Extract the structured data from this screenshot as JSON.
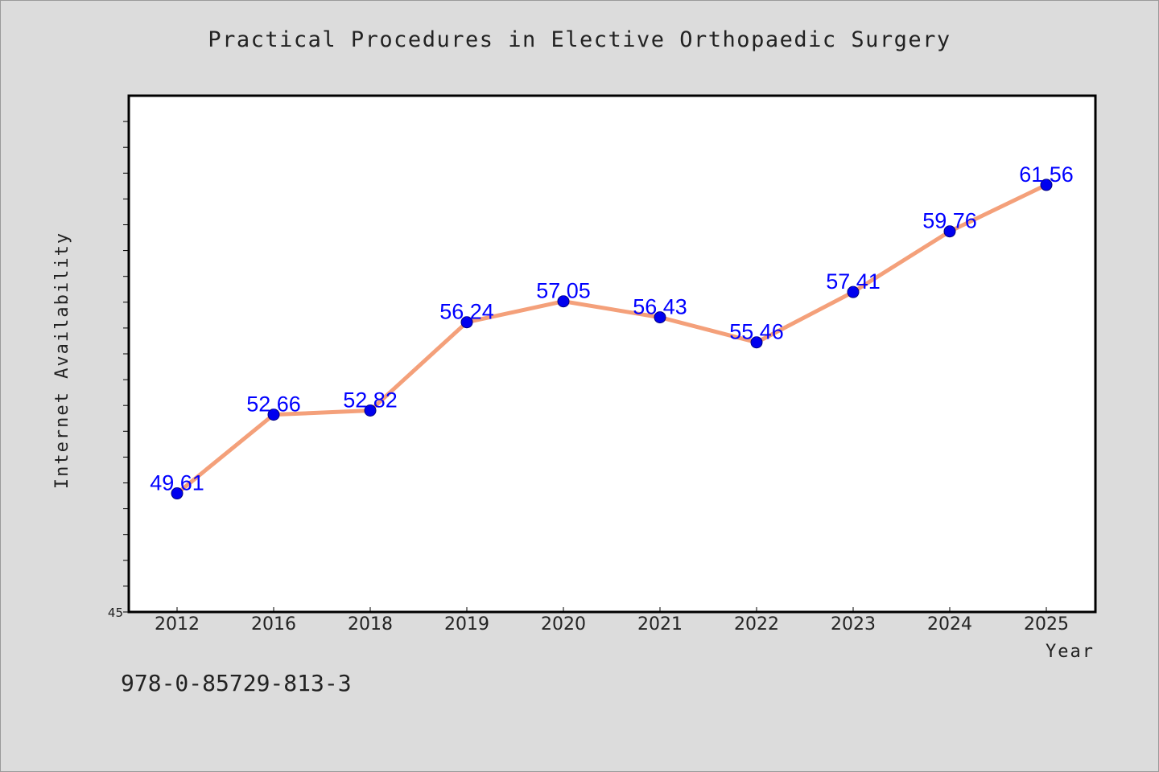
{
  "chart_data": {
    "type": "line",
    "title": "Practical Procedures in Elective Orthopaedic Surgery",
    "xlabel": "Year",
    "ylabel": "Internet Availability",
    "categories": [
      "2012",
      "2016",
      "2018",
      "2019",
      "2020",
      "2021",
      "2022",
      "2023",
      "2024",
      "2025"
    ],
    "series": [
      {
        "values": [
          49.61,
          52.66,
          52.82,
          56.24,
          57.05,
          56.43,
          55.46,
          57.41,
          59.76,
          61.56
        ],
        "data_labels": [
          "49.61",
          "52.66",
          "52.82",
          "56.24",
          "57.05",
          "56.43",
          "55.46",
          "57.41",
          "59.76",
          "61.56"
        ]
      }
    ],
    "ylim": [
      45,
      65
    ],
    "y_tick_labels": [
      "45"
    ],
    "grid": false,
    "legend": "none",
    "line_color": "#f4a07a",
    "marker_color": "#0000ee",
    "label_color": "#0000ff"
  },
  "footer": {
    "isbn": "978-0-85729-813-3"
  }
}
